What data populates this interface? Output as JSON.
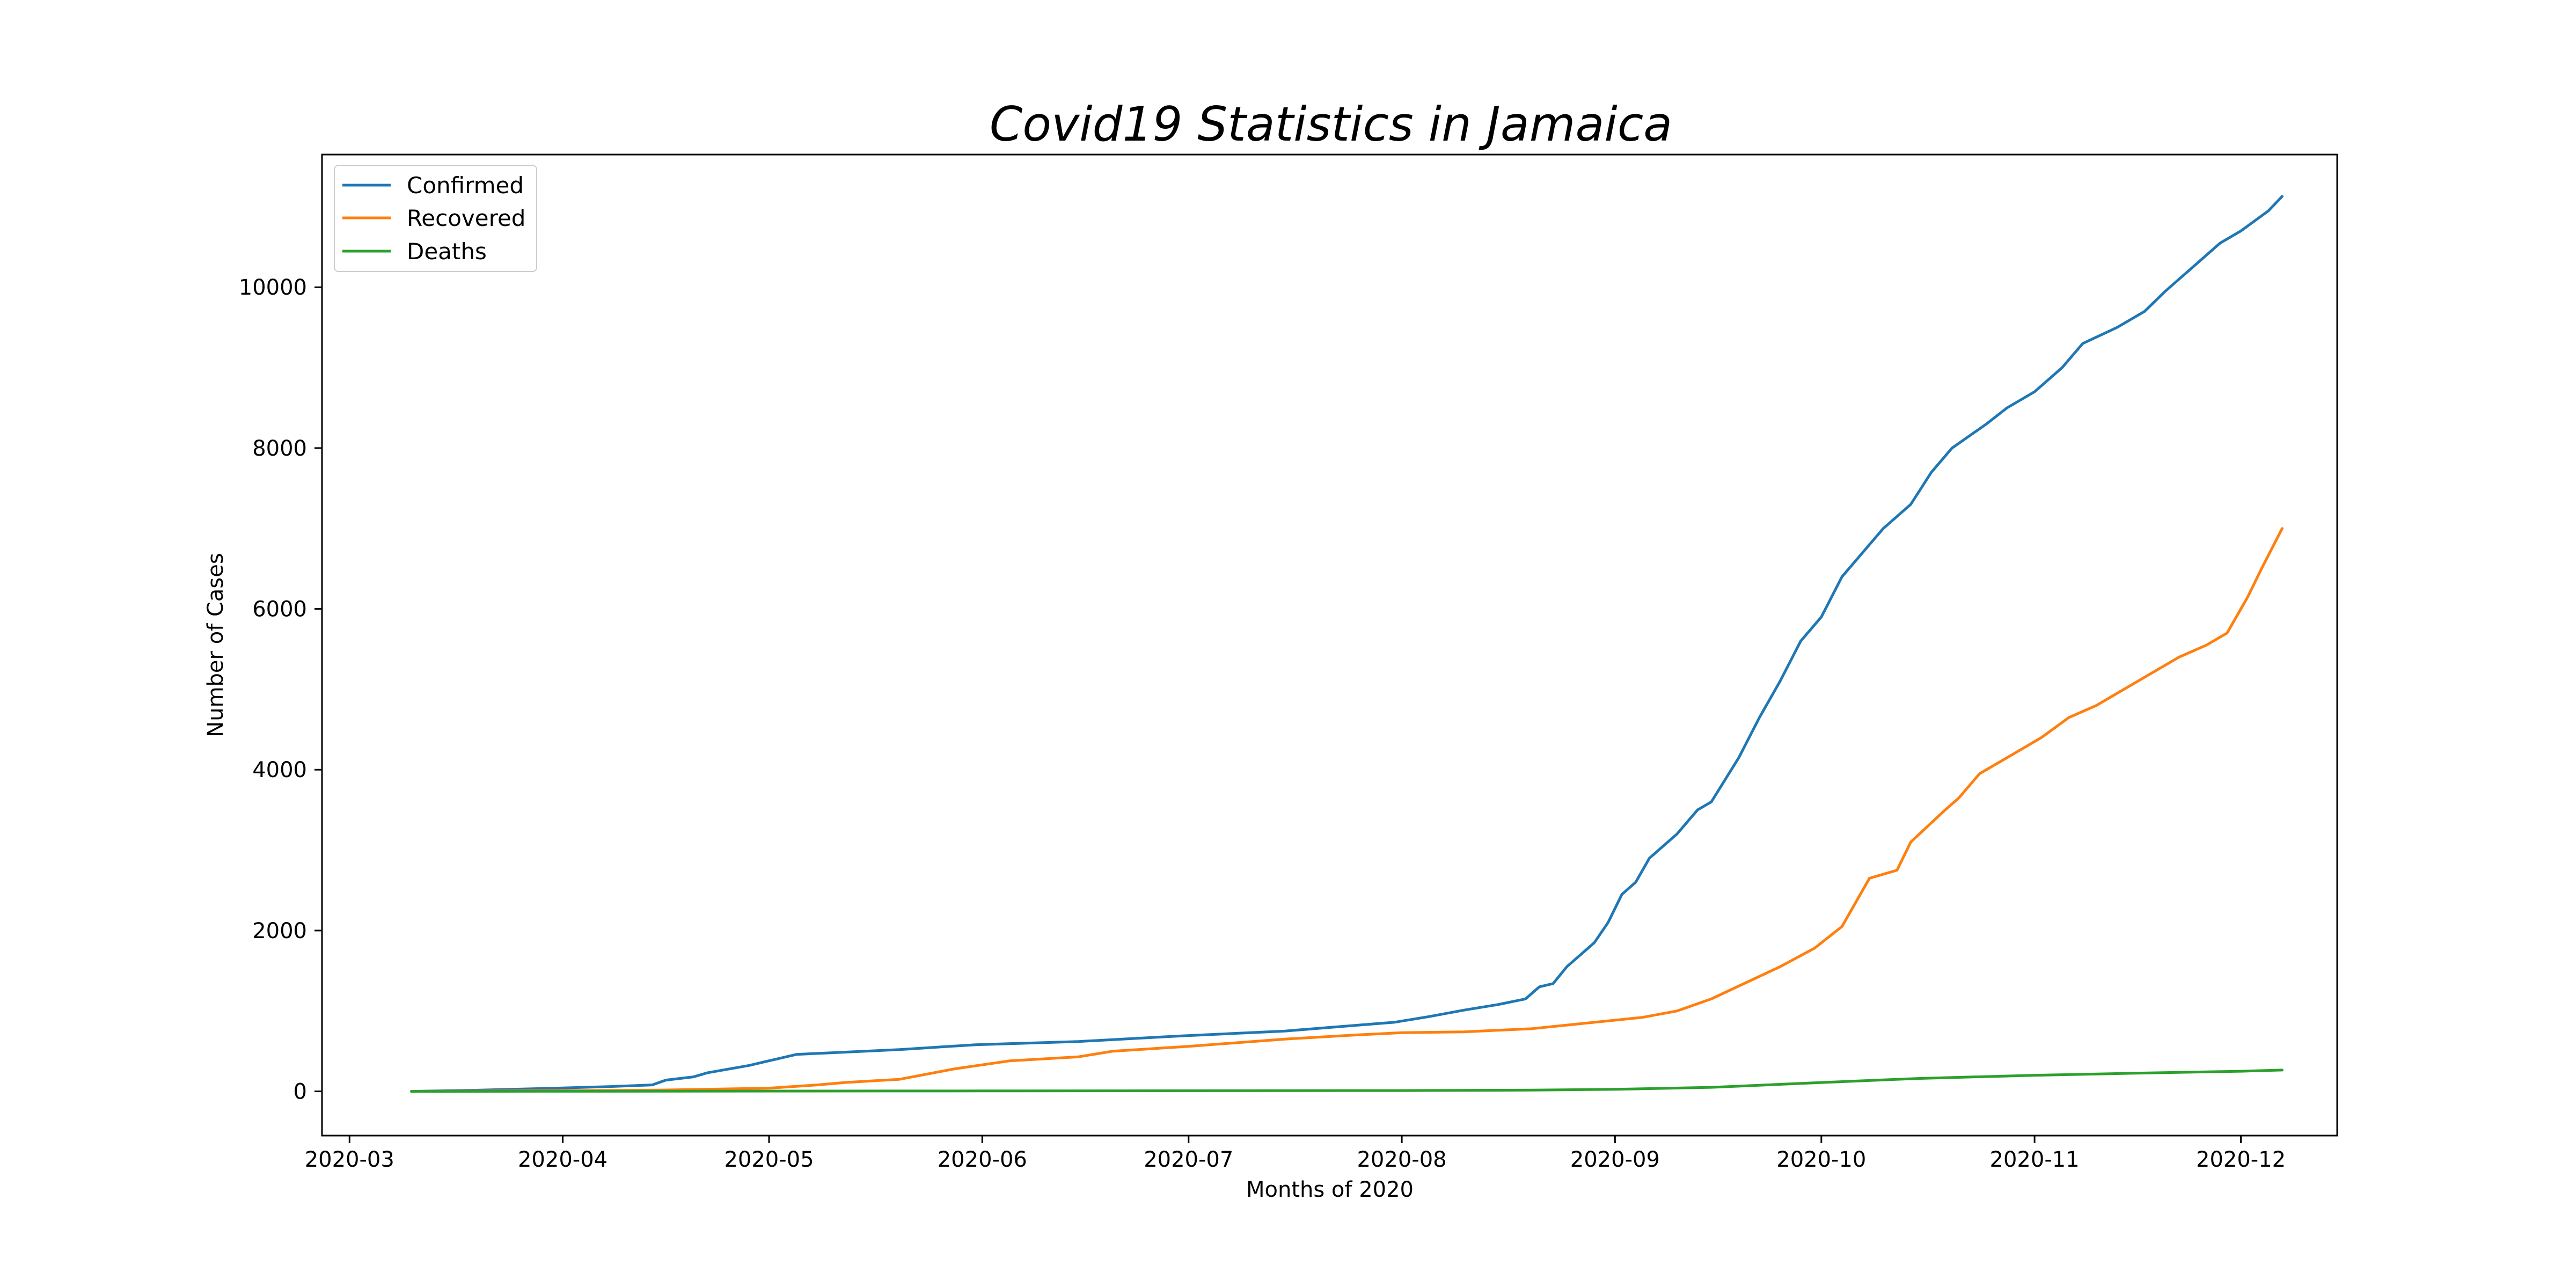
{
  "chart_data": {
    "type": "line",
    "title": "Covid19 Statistics in Jamaica",
    "xlabel": "Months of 2020",
    "ylabel": "Number of Cases",
    "x_tick_labels": [
      "2020-03",
      "2020-04",
      "2020-05",
      "2020-06",
      "2020-07",
      "2020-08",
      "2020-09",
      "2020-10",
      "2020-11",
      "2020-12"
    ],
    "y_ticks": [
      0,
      2000,
      4000,
      6000,
      8000,
      10000
    ],
    "xlim": [
      "2020-02-26",
      "2020-12-15"
    ],
    "ylim": [
      -550,
      11650
    ],
    "legend_position": "top-left",
    "grid": false,
    "series": [
      {
        "name": "Confirmed",
        "color": "#1f77b4",
        "points": [
          [
            "2020-03-10",
            0
          ],
          [
            "2020-03-20",
            15
          ],
          [
            "2020-03-31",
            40
          ],
          [
            "2020-04-08",
            60
          ],
          [
            "2020-04-14",
            80
          ],
          [
            "2020-04-16",
            140
          ],
          [
            "2020-04-20",
            180
          ],
          [
            "2020-04-22",
            230
          ],
          [
            "2020-04-28",
            320
          ],
          [
            "2020-04-30",
            360
          ],
          [
            "2020-05-03",
            420
          ],
          [
            "2020-05-05",
            460
          ],
          [
            "2020-05-10",
            480
          ],
          [
            "2020-05-20",
            520
          ],
          [
            "2020-05-31",
            580
          ],
          [
            "2020-06-15",
            620
          ],
          [
            "2020-06-30",
            690
          ],
          [
            "2020-07-15",
            750
          ],
          [
            "2020-07-31",
            860
          ],
          [
            "2020-08-05",
            930
          ],
          [
            "2020-08-10",
            1010
          ],
          [
            "2020-08-15",
            1080
          ],
          [
            "2020-08-19",
            1150
          ],
          [
            "2020-08-21",
            1300
          ],
          [
            "2020-08-23",
            1340
          ],
          [
            "2020-08-25",
            1550
          ],
          [
            "2020-08-27",
            1700
          ],
          [
            "2020-08-29",
            1850
          ],
          [
            "2020-08-31",
            2100
          ],
          [
            "2020-09-02",
            2450
          ],
          [
            "2020-09-04",
            2600
          ],
          [
            "2020-09-06",
            2900
          ],
          [
            "2020-09-10",
            3200
          ],
          [
            "2020-09-13",
            3500
          ],
          [
            "2020-09-15",
            3600
          ],
          [
            "2020-09-19",
            4150
          ],
          [
            "2020-09-22",
            4650
          ],
          [
            "2020-09-25",
            5100
          ],
          [
            "2020-09-28",
            5600
          ],
          [
            "2020-10-01",
            5900
          ],
          [
            "2020-10-04",
            6400
          ],
          [
            "2020-10-07",
            6700
          ],
          [
            "2020-10-10",
            7000
          ],
          [
            "2020-10-14",
            7300
          ],
          [
            "2020-10-17",
            7700
          ],
          [
            "2020-10-20",
            8000
          ],
          [
            "2020-10-25",
            8300
          ],
          [
            "2020-10-28",
            8500
          ],
          [
            "2020-11-01",
            8700
          ],
          [
            "2020-11-05",
            9000
          ],
          [
            "2020-11-08",
            9300
          ],
          [
            "2020-11-13",
            9500
          ],
          [
            "2020-11-17",
            9700
          ],
          [
            "2020-11-20",
            9950
          ],
          [
            "2020-11-24",
            10250
          ],
          [
            "2020-11-28",
            10550
          ],
          [
            "2020-12-01",
            10700
          ],
          [
            "2020-12-05",
            10950
          ],
          [
            "2020-12-07",
            11130
          ]
        ]
      },
      {
        "name": "Recovered",
        "color": "#ff7f0e",
        "points": [
          [
            "2020-03-10",
            0
          ],
          [
            "2020-04-15",
            15
          ],
          [
            "2020-05-01",
            40
          ],
          [
            "2020-05-08",
            80
          ],
          [
            "2020-05-12",
            110
          ],
          [
            "2020-05-20",
            150
          ],
          [
            "2020-05-28",
            280
          ],
          [
            "2020-06-05",
            380
          ],
          [
            "2020-06-15",
            430
          ],
          [
            "2020-06-20",
            500
          ],
          [
            "2020-07-01",
            560
          ],
          [
            "2020-07-15",
            650
          ],
          [
            "2020-07-25",
            700
          ],
          [
            "2020-08-01",
            730
          ],
          [
            "2020-08-10",
            740
          ],
          [
            "2020-08-20",
            780
          ],
          [
            "2020-08-28",
            850
          ],
          [
            "2020-09-05",
            920
          ],
          [
            "2020-09-10",
            1000
          ],
          [
            "2020-09-15",
            1150
          ],
          [
            "2020-09-20",
            1350
          ],
          [
            "2020-09-25",
            1550
          ],
          [
            "2020-09-30",
            1780
          ],
          [
            "2020-10-04",
            2050
          ],
          [
            "2020-10-08",
            2650
          ],
          [
            "2020-10-12",
            2750
          ],
          [
            "2020-10-14",
            3100
          ],
          [
            "2020-10-19",
            3500
          ],
          [
            "2020-10-21",
            3650
          ],
          [
            "2020-10-24",
            3950
          ],
          [
            "2020-10-29",
            4200
          ],
          [
            "2020-11-02",
            4400
          ],
          [
            "2020-11-06",
            4650
          ],
          [
            "2020-11-10",
            4800
          ],
          [
            "2020-11-14",
            5000
          ],
          [
            "2020-11-18",
            5200
          ],
          [
            "2020-11-22",
            5400
          ],
          [
            "2020-11-26",
            5550
          ],
          [
            "2020-11-29",
            5700
          ],
          [
            "2020-12-02",
            6150
          ],
          [
            "2020-12-04",
            6500
          ],
          [
            "2020-12-07",
            7000
          ]
        ]
      },
      {
        "name": "Deaths",
        "color": "#2ca02c",
        "points": [
          [
            "2020-03-10",
            0
          ],
          [
            "2020-06-01",
            5
          ],
          [
            "2020-08-01",
            10
          ],
          [
            "2020-08-20",
            15
          ],
          [
            "2020-09-01",
            25
          ],
          [
            "2020-09-15",
            50
          ],
          [
            "2020-10-01",
            110
          ],
          [
            "2020-10-15",
            160
          ],
          [
            "2020-11-01",
            200
          ],
          [
            "2020-11-15",
            225
          ],
          [
            "2020-12-01",
            250
          ],
          [
            "2020-12-07",
            265
          ]
        ]
      }
    ]
  }
}
